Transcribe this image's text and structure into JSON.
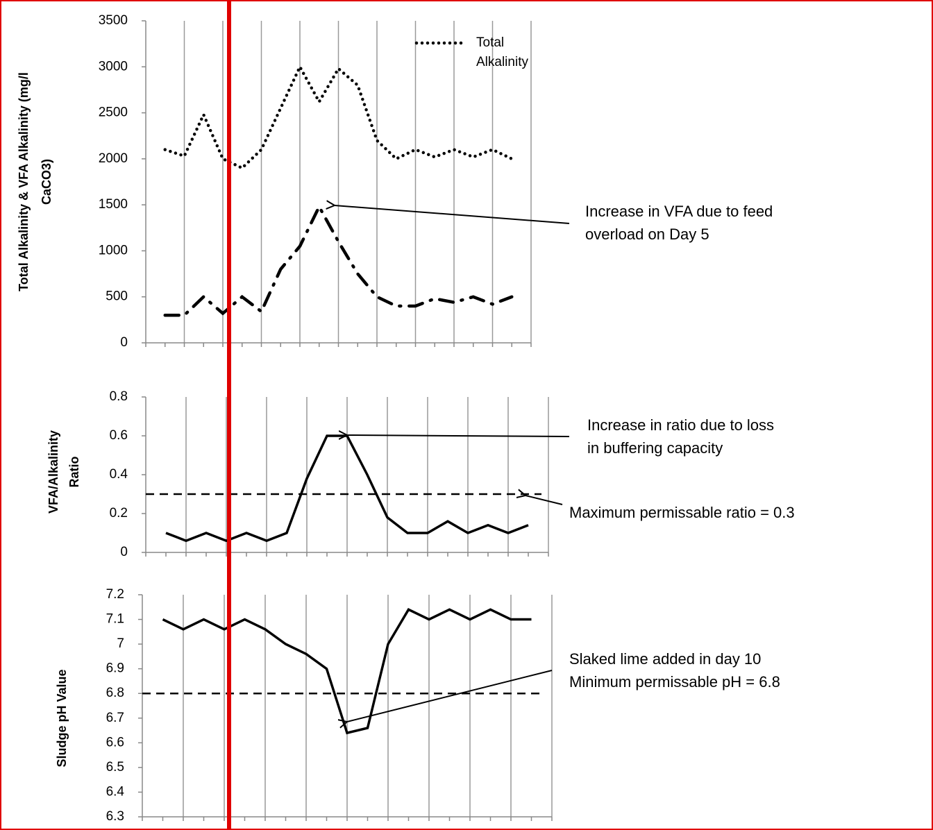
{
  "chart_data": [
    {
      "type": "line",
      "ylabel": [
        "Total Alkalinity  & VFA Alkalinity (mg/l",
        "CaCO3)"
      ],
      "ylim": [
        0,
        3500
      ],
      "yticks": [
        0,
        500,
        1000,
        1500,
        2000,
        2500,
        3000,
        3500
      ],
      "series": [
        {
          "name": "Total Alkalinity",
          "color": "#000000",
          "dash": "dotted",
          "values": [
            2100,
            2030,
            2480,
            2000,
            1900,
            2100,
            2550,
            3000,
            2620,
            2980,
            2800,
            2200,
            2000,
            2100,
            2020,
            2100,
            2020,
            2100,
            2000
          ]
        },
        {
          "color": "#000000",
          "dash": "dashdot",
          "values": [
            300,
            300,
            500,
            320,
            500,
            340,
            800,
            1050,
            1480,
            1100,
            750,
            500,
            400,
            400,
            480,
            440,
            500,
            420,
            500
          ]
        }
      ],
      "annotations": [
        [
          "Increase in VFA due to feed",
          "overload on Day 5"
        ]
      ]
    },
    {
      "type": "line",
      "ylabel": [
        "VFA/Alkalinity",
        "Ratio"
      ],
      "ylim": [
        0,
        0.8
      ],
      "yticks": [
        0,
        0.2,
        0.4,
        0.6,
        0.8
      ],
      "series": [
        {
          "color": "#000000",
          "dash": "solid",
          "values": [
            0.1,
            0.06,
            0.1,
            0.06,
            0.1,
            0.06,
            0.1,
            0.38,
            0.6,
            0.6,
            0.4,
            0.18,
            0.1,
            0.1,
            0.16,
            0.1,
            0.14,
            0.1,
            0.14
          ]
        }
      ],
      "hlines": [
        0.3
      ],
      "annotations": [
        [
          "Increase in ratio due to loss",
          "in buffering capacity"
        ],
        [
          "Maximum permissable ratio = 0.3"
        ]
      ]
    },
    {
      "type": "line",
      "ylabel": [
        "Sludge pH Value"
      ],
      "ylim": [
        6.3,
        7.2
      ],
      "yticks": [
        6.3,
        6.4,
        6.5,
        6.6,
        6.7,
        6.8,
        6.9,
        7,
        7.1,
        7.2
      ],
      "series": [
        {
          "color": "#000000",
          "dash": "solid",
          "values": [
            7.1,
            7.06,
            7.1,
            7.06,
            7.1,
            7.06,
            7.0,
            6.96,
            6.9,
            6.64,
            6.66,
            7.0,
            7.14,
            7.1,
            7.14,
            7.1,
            7.14,
            7.1,
            7.1
          ]
        }
      ],
      "hlines": [
        6.8
      ],
      "annotations": [
        [
          "Slaked lime added in day 10",
          "Minimum permissable pH = 6.8"
        ]
      ]
    }
  ]
}
